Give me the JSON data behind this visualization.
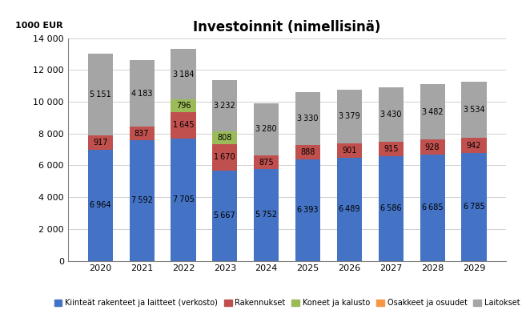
{
  "title": "Investoinnit (nimellisinä)",
  "ylabel": "1000 EUR",
  "years": [
    2020,
    2021,
    2022,
    2023,
    2024,
    2025,
    2026,
    2027,
    2028,
    2029
  ],
  "series": {
    "Kiinteät rakenteet ja laitteet (verkosto)": [
      6964,
      7592,
      7705,
      5667,
      5752,
      6393,
      6489,
      6586,
      6685,
      6785
    ],
    "Rakennukset": [
      917,
      837,
      1645,
      1670,
      875,
      888,
      901,
      915,
      928,
      942
    ],
    "Koneet ja kalusto": [
      0,
      0,
      796,
      808,
      0,
      0,
      0,
      0,
      0,
      0
    ],
    "Osakkeet ja osuudet": [
      0,
      0,
      0,
      0,
      0,
      0,
      0,
      0,
      0,
      0
    ],
    "Laitokset": [
      5151,
      4183,
      3184,
      3232,
      3280,
      3330,
      3379,
      3430,
      3482,
      3534
    ]
  },
  "colors": {
    "Kiinteät rakenteet ja laitteet (verkosto)": "#4472C4",
    "Rakennukset": "#C0504D",
    "Koneet ja kalusto": "#9BBB59",
    "Osakkeet ja osuudet": "#F79646",
    "Laitokset": "#A5A5A5"
  },
  "ylim": [
    0,
    14000
  ],
  "yticks": [
    0,
    2000,
    4000,
    6000,
    8000,
    10000,
    12000,
    14000
  ],
  "ytick_labels": [
    "0",
    "2 000",
    "4 000",
    "6 000",
    "8 000",
    "10 000",
    "12 000",
    "14 000"
  ],
  "bar_width": 0.6,
  "figsize": [
    6.52,
    3.97
  ],
  "dpi": 100,
  "label_fontsize": 7,
  "tick_fontsize": 8,
  "title_fontsize": 12
}
